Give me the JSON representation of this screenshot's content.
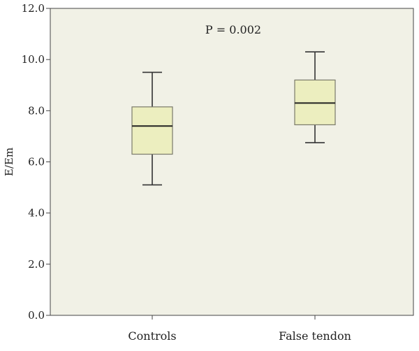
{
  "chart_data": {
    "type": "boxplot",
    "title": "",
    "xlabel": "",
    "ylabel": "E/Em",
    "ylim": [
      0,
      12
    ],
    "yticks": [
      "0.0",
      "2.0",
      "4.0",
      "6.0",
      "8.0",
      "10.0",
      "12.0"
    ],
    "grid": false,
    "annotation": "P = 0.002",
    "categories": [
      "Controls",
      "False tendon"
    ],
    "boxes": [
      {
        "min": 5.1,
        "q1": 6.3,
        "median": 7.4,
        "q3": 8.15,
        "max": 9.5
      },
      {
        "min": 6.75,
        "q1": 7.45,
        "median": 8.3,
        "q3": 9.2,
        "max": 10.3
      }
    ],
    "colors": {
      "plot_bg": "#f1f1e6",
      "box_fill": "#eceebf",
      "box_stroke": "#7a7a6a",
      "line": "#333333",
      "axis": "#444444"
    }
  }
}
